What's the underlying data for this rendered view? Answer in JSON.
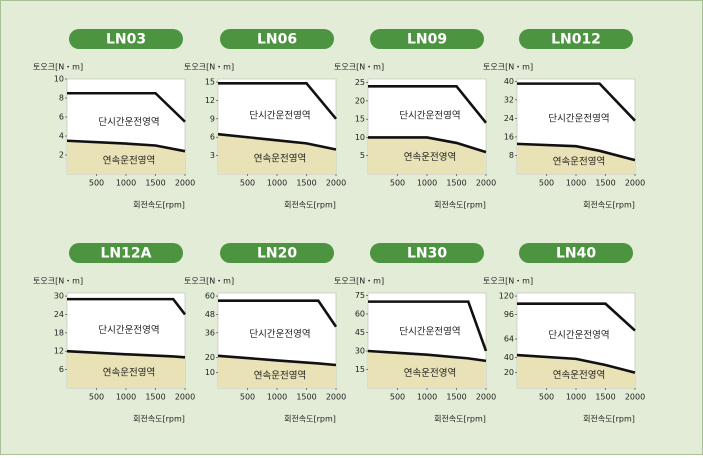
{
  "chart_data": [
    {
      "type": "line",
      "title": "LN03",
      "ylabel": "토오크[N・m]",
      "xlabel": "회전속도[rpm]",
      "annotations": [
        "단시간운전영역",
        "연속운전영역"
      ],
      "x": [
        0,
        1000,
        1500,
        2000
      ],
      "xlim": [
        0,
        2000
      ],
      "xticks": [
        500,
        1000,
        1500,
        2000
      ],
      "ylim": [
        0,
        10
      ],
      "yticks": [
        2,
        4,
        6,
        8,
        10
      ],
      "series": [
        {
          "color": "#111111",
          "values": [
            8.5,
            8.5,
            8.5,
            5.5
          ]
        },
        {
          "color": "#111111",
          "values": [
            3.5,
            3.2,
            3.0,
            2.4
          ]
        }
      ]
    },
    {
      "type": "line",
      "title": "LN06",
      "ylabel": "토오크[N・m]",
      "xlabel": "회전속도[rpm]",
      "annotations": [
        "단시간운전영역",
        "연속운전영역"
      ],
      "x": [
        0,
        1000,
        1500,
        2000
      ],
      "xlim": [
        0,
        2000
      ],
      "xticks": [
        500,
        1000,
        1500,
        2000
      ],
      "ylim": [
        0,
        15.5
      ],
      "yticks": [
        3,
        6,
        9,
        12,
        15
      ],
      "series": [
        {
          "color": "#111111",
          "values": [
            14.8,
            14.8,
            14.8,
            9
          ]
        },
        {
          "color": "#111111",
          "values": [
            6.5,
            5.5,
            5,
            4
          ]
        }
      ]
    },
    {
      "type": "line",
      "title": "LN09",
      "ylabel": "토오크[N・m]",
      "xlabel": "회전속도[rpm]",
      "annotations": [
        "단시간운전영역",
        "연속운전영역"
      ],
      "x": [
        0,
        1000,
        1500,
        2000
      ],
      "xlim": [
        0,
        2000
      ],
      "xticks": [
        500,
        1000,
        1500,
        2000
      ],
      "ylim": [
        0,
        26
      ],
      "yticks": [
        5,
        10,
        15,
        20,
        25
      ],
      "series": [
        {
          "color": "#111111",
          "values": [
            24,
            24,
            24,
            14
          ]
        },
        {
          "color": "#111111",
          "values": [
            10,
            10,
            8.5,
            6
          ]
        }
      ]
    },
    {
      "type": "line",
      "title": "LN012",
      "ylabel": "토오크[N・m]",
      "xlabel": "회전속도[rpm]",
      "annotations": [
        "단시간운전영역",
        "연속운전영역"
      ],
      "x": [
        0,
        1000,
        1400,
        2000
      ],
      "xlim": [
        0,
        2000
      ],
      "xticks": [
        500,
        1000,
        1500,
        2000
      ],
      "ylim": [
        0,
        41
      ],
      "yticks": [
        8,
        16,
        24,
        32,
        40
      ],
      "series": [
        {
          "color": "#111111",
          "values": [
            39,
            39,
            39,
            23
          ]
        },
        {
          "color": "#111111",
          "values": [
            13,
            12,
            10,
            6
          ]
        }
      ]
    },
    {
      "type": "line",
      "title": "LN12A",
      "ylabel": "토오크[N・m]",
      "xlabel": "회전속도[rpm]",
      "annotations": [
        "단시간운전영역",
        "연속운전영역"
      ],
      "x": [
        0,
        1000,
        1800,
        2000
      ],
      "xlim": [
        0,
        2000
      ],
      "xticks": [
        500,
        1000,
        1500,
        2000
      ],
      "ylim": [
        0,
        31
      ],
      "yticks": [
        6,
        12,
        18,
        24,
        30
      ],
      "series": [
        {
          "color": "#111111",
          "values": [
            29,
            29,
            29,
            24
          ]
        },
        {
          "color": "#111111",
          "values": [
            12,
            11,
            10.3,
            10
          ]
        }
      ]
    },
    {
      "type": "line",
      "title": "LN20",
      "ylabel": "토오크[N・m]",
      "xlabel": "회전속도[rpm]",
      "annotations": [
        "단시간운전영역",
        "연속운전영역"
      ],
      "x": [
        0,
        1000,
        1700,
        2000
      ],
      "xlim": [
        0,
        2000
      ],
      "xticks": [
        500,
        1000,
        1500,
        2000
      ],
      "ylim": [
        0,
        62
      ],
      "yticks": [
        10,
        20,
        36,
        48,
        60
      ],
      "series": [
        {
          "color": "#111111",
          "values": [
            57,
            57,
            57,
            40
          ]
        },
        {
          "color": "#111111",
          "values": [
            21,
            18,
            16,
            15
          ]
        }
      ]
    },
    {
      "type": "line",
      "title": "LN30",
      "ylabel": "토오크[N・m]",
      "xlabel": "회전속도[rpm]",
      "annotations": [
        "단시간운전영역",
        "연속운전영역"
      ],
      "x": [
        0,
        1000,
        1700,
        2000
      ],
      "xlim": [
        0,
        2000
      ],
      "xticks": [
        500,
        1000,
        1500,
        2000
      ],
      "ylim": [
        0,
        77
      ],
      "yticks": [
        15,
        30,
        45,
        60,
        75
      ],
      "series": [
        {
          "color": "#111111",
          "values": [
            70,
            70,
            70,
            30
          ]
        },
        {
          "color": "#111111",
          "values": [
            30,
            27,
            24,
            22
          ]
        }
      ]
    },
    {
      "type": "line",
      "title": "LN40",
      "ylabel": "토오크[N・m]",
      "xlabel": "회전속도[rpm]",
      "annotations": [
        "단시간운전영역",
        "연속운전영역"
      ],
      "x": [
        0,
        1000,
        1500,
        2000
      ],
      "xlim": [
        0,
        2000
      ],
      "xticks": [
        500,
        1000,
        1500,
        2000
      ],
      "ylim": [
        0,
        124
      ],
      "yticks": [
        20,
        40,
        64,
        96,
        120
      ],
      "series": [
        {
          "color": "#111111",
          "values": [
            110,
            110,
            110,
            75
          ]
        },
        {
          "color": "#111111",
          "values": [
            43,
            38,
            30,
            20
          ]
        }
      ]
    }
  ]
}
